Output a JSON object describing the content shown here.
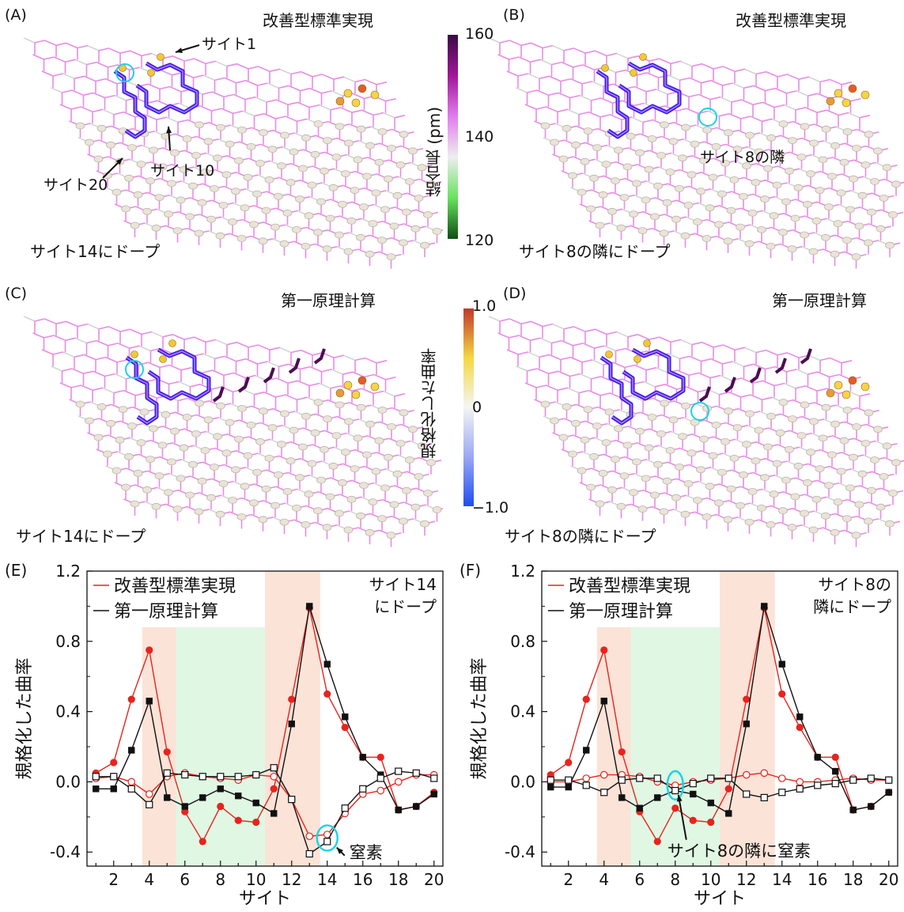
{
  "panels": {
    "A": {
      "label": "(A)",
      "title": "改善型標準実現",
      "dope": "サイト14にドープ",
      "ann": [
        "サイト1",
        "サイト10",
        "サイト20"
      ]
    },
    "B": {
      "label": "(B)",
      "title": "改善型標準実現",
      "dope": "サイト8の隣にドープ",
      "ann": [
        "サイト8の隣"
      ]
    },
    "C": {
      "label": "(C)",
      "title": "第一原理計算",
      "dope": "サイト14にドープ"
    },
    "D": {
      "label": "(D)",
      "title": "第一原理計算",
      "dope": "サイト8の隣にドープ"
    }
  },
  "colorbars": {
    "bond": {
      "title": "結合長 (pm)",
      "ticks": [
        "160",
        "140",
        "120"
      ],
      "colors": [
        "#3b0a45",
        "#a1169b",
        "#e27cee",
        "#eeeeee",
        "#66e35c",
        "#0f4d14"
      ]
    },
    "curv": {
      "title": "規格化した曲率",
      "ticks": [
        "1.0",
        "0",
        "−1.0"
      ],
      "colors": [
        "#c0392b",
        "#f5d742",
        "#f5f5f5",
        "#9aa8f4",
        "#1f4df2"
      ]
    }
  },
  "chart_data": [
    {
      "type": "line",
      "panel_label": "(E)",
      "xlabel": "サイト",
      "ylabel": "規格化した曲率",
      "xlim": [
        0.5,
        20.5
      ],
      "ylim": [
        -0.48,
        1.2
      ],
      "xticks": [
        2,
        4,
        6,
        8,
        10,
        12,
        14,
        16,
        18,
        20
      ],
      "yticks": [
        -0.4,
        0.0,
        0.4,
        0.8,
        1.2
      ],
      "ytick_labels": [
        "-0.4",
        "0.0",
        "0.4",
        "0.8",
        "1.2"
      ],
      "legend": [
        "改善型標準実現",
        "第一原理計算"
      ],
      "legend_position": "top-left",
      "annotation_title": [
        "サイト14",
        "にドープ"
      ],
      "annotation_arrow": "窒素",
      "highlight_site": 14,
      "shaded": [
        {
          "from": 3.6,
          "to": 5.5,
          "color": "#fbe3d7"
        },
        {
          "from": 5.5,
          "to": 10.5,
          "color": "#e0f7e4"
        },
        {
          "from": 10.5,
          "to": 13.6,
          "color": "#fbe3d7"
        }
      ],
      "x": [
        1,
        2,
        3,
        4,
        5,
        6,
        7,
        8,
        9,
        10,
        11,
        12,
        13,
        14,
        15,
        16,
        17,
        18,
        19,
        20
      ],
      "series": [
        {
          "name": "改善型標準実現",
          "color": "#e8231d",
          "marker": "filled-circle",
          "values": [
            0.05,
            0.11,
            0.47,
            0.75,
            0.17,
            -0.17,
            -0.34,
            -0.14,
            -0.22,
            -0.23,
            -0.04,
            0.47,
            0.99,
            0.5,
            0.31,
            0.14,
            0.14,
            -0.16,
            -0.14,
            -0.06
          ]
        },
        {
          "name": "改善型標準実現",
          "color": "#e8231d",
          "marker": "open-circle",
          "values": [
            0.02,
            0.03,
            0.0,
            -0.07,
            0.03,
            0.05,
            0.03,
            0.02,
            0.01,
            0.04,
            0.03,
            -0.1,
            -0.31,
            -0.3,
            -0.18,
            -0.07,
            -0.05,
            0.0,
            0.04,
            0.04
          ]
        },
        {
          "name": "第一原理計算",
          "color": "#111111",
          "marker": "filled-square",
          "values": [
            -0.04,
            -0.04,
            0.18,
            0.46,
            -0.09,
            -0.14,
            -0.09,
            -0.04,
            -0.08,
            -0.12,
            -0.18,
            0.33,
            1.0,
            0.67,
            0.37,
            0.14,
            0.04,
            -0.16,
            -0.14,
            -0.07
          ]
        },
        {
          "name": "第一原理計算",
          "color": "#111111",
          "marker": "open-square",
          "values": [
            0.03,
            0.03,
            -0.04,
            -0.13,
            0.05,
            0.04,
            0.03,
            0.03,
            0.03,
            0.04,
            0.08,
            -0.1,
            -0.41,
            -0.34,
            -0.15,
            -0.04,
            0.02,
            0.06,
            0.05,
            0.02
          ]
        }
      ]
    },
    {
      "type": "line",
      "panel_label": "(F)",
      "xlabel": "サイト",
      "ylabel": "規格化した曲率",
      "xlim": [
        0.5,
        20.5
      ],
      "ylim": [
        -0.48,
        1.2
      ],
      "xticks": [
        2,
        4,
        6,
        8,
        10,
        12,
        14,
        16,
        18,
        20
      ],
      "yticks": [
        -0.4,
        0.0,
        0.4,
        0.8,
        1.2
      ],
      "ytick_labels": [
        "-0.4",
        "0.0",
        "0.4",
        "0.8",
        "1.2"
      ],
      "legend": [
        "改善型標準実現",
        "第一原理計算"
      ],
      "legend_position": "top-left",
      "annotation_title": [
        "サイト8の",
        "隣にドープ"
      ],
      "annotation_arrow": "サイト8の隣に窒素",
      "highlight_site": 8,
      "shaded": [
        {
          "from": 3.6,
          "to": 5.5,
          "color": "#fbe3d7"
        },
        {
          "from": 5.5,
          "to": 10.5,
          "color": "#e0f7e4"
        },
        {
          "from": 10.5,
          "to": 13.6,
          "color": "#fbe3d7"
        }
      ],
      "x": [
        1,
        2,
        3,
        4,
        5,
        6,
        7,
        8,
        9,
        10,
        11,
        12,
        13,
        14,
        15,
        16,
        17,
        18,
        19,
        20
      ],
      "series": [
        {
          "name": "改善型標準実現",
          "color": "#e8231d",
          "marker": "filled-circle",
          "values": [
            0.04,
            0.11,
            0.47,
            0.75,
            0.17,
            -0.17,
            -0.34,
            -0.15,
            -0.22,
            -0.23,
            -0.04,
            0.47,
            0.99,
            0.5,
            0.31,
            0.14,
            0.14,
            -0.16,
            -0.14,
            -0.06
          ]
        },
        {
          "name": "改善型標準実現",
          "color": "#e8231d",
          "marker": "open-circle",
          "values": [
            0.0,
            0.0,
            0.02,
            0.04,
            0.04,
            0.03,
            0.0,
            -0.02,
            0.0,
            0.01,
            0.02,
            0.04,
            0.05,
            0.02,
            0.0,
            0.0,
            0.01,
            0.02,
            0.01,
            0.01
          ]
        },
        {
          "name": "第一原理計算",
          "color": "#111111",
          "marker": "filled-square",
          "values": [
            -0.03,
            -0.03,
            0.18,
            0.46,
            -0.09,
            -0.15,
            -0.09,
            -0.05,
            -0.07,
            -0.12,
            -0.18,
            0.33,
            1.0,
            0.67,
            0.37,
            0.14,
            0.06,
            -0.16,
            -0.14,
            -0.06
          ]
        },
        {
          "name": "第一原理計算",
          "color": "#111111",
          "marker": "open-square",
          "values": [
            0.01,
            0.01,
            -0.02,
            -0.06,
            0.01,
            0.02,
            0.02,
            -0.05,
            -0.01,
            0.02,
            0.02,
            -0.07,
            -0.09,
            -0.06,
            -0.04,
            -0.02,
            -0.01,
            0.01,
            0.02,
            0.01
          ]
        }
      ]
    }
  ]
}
